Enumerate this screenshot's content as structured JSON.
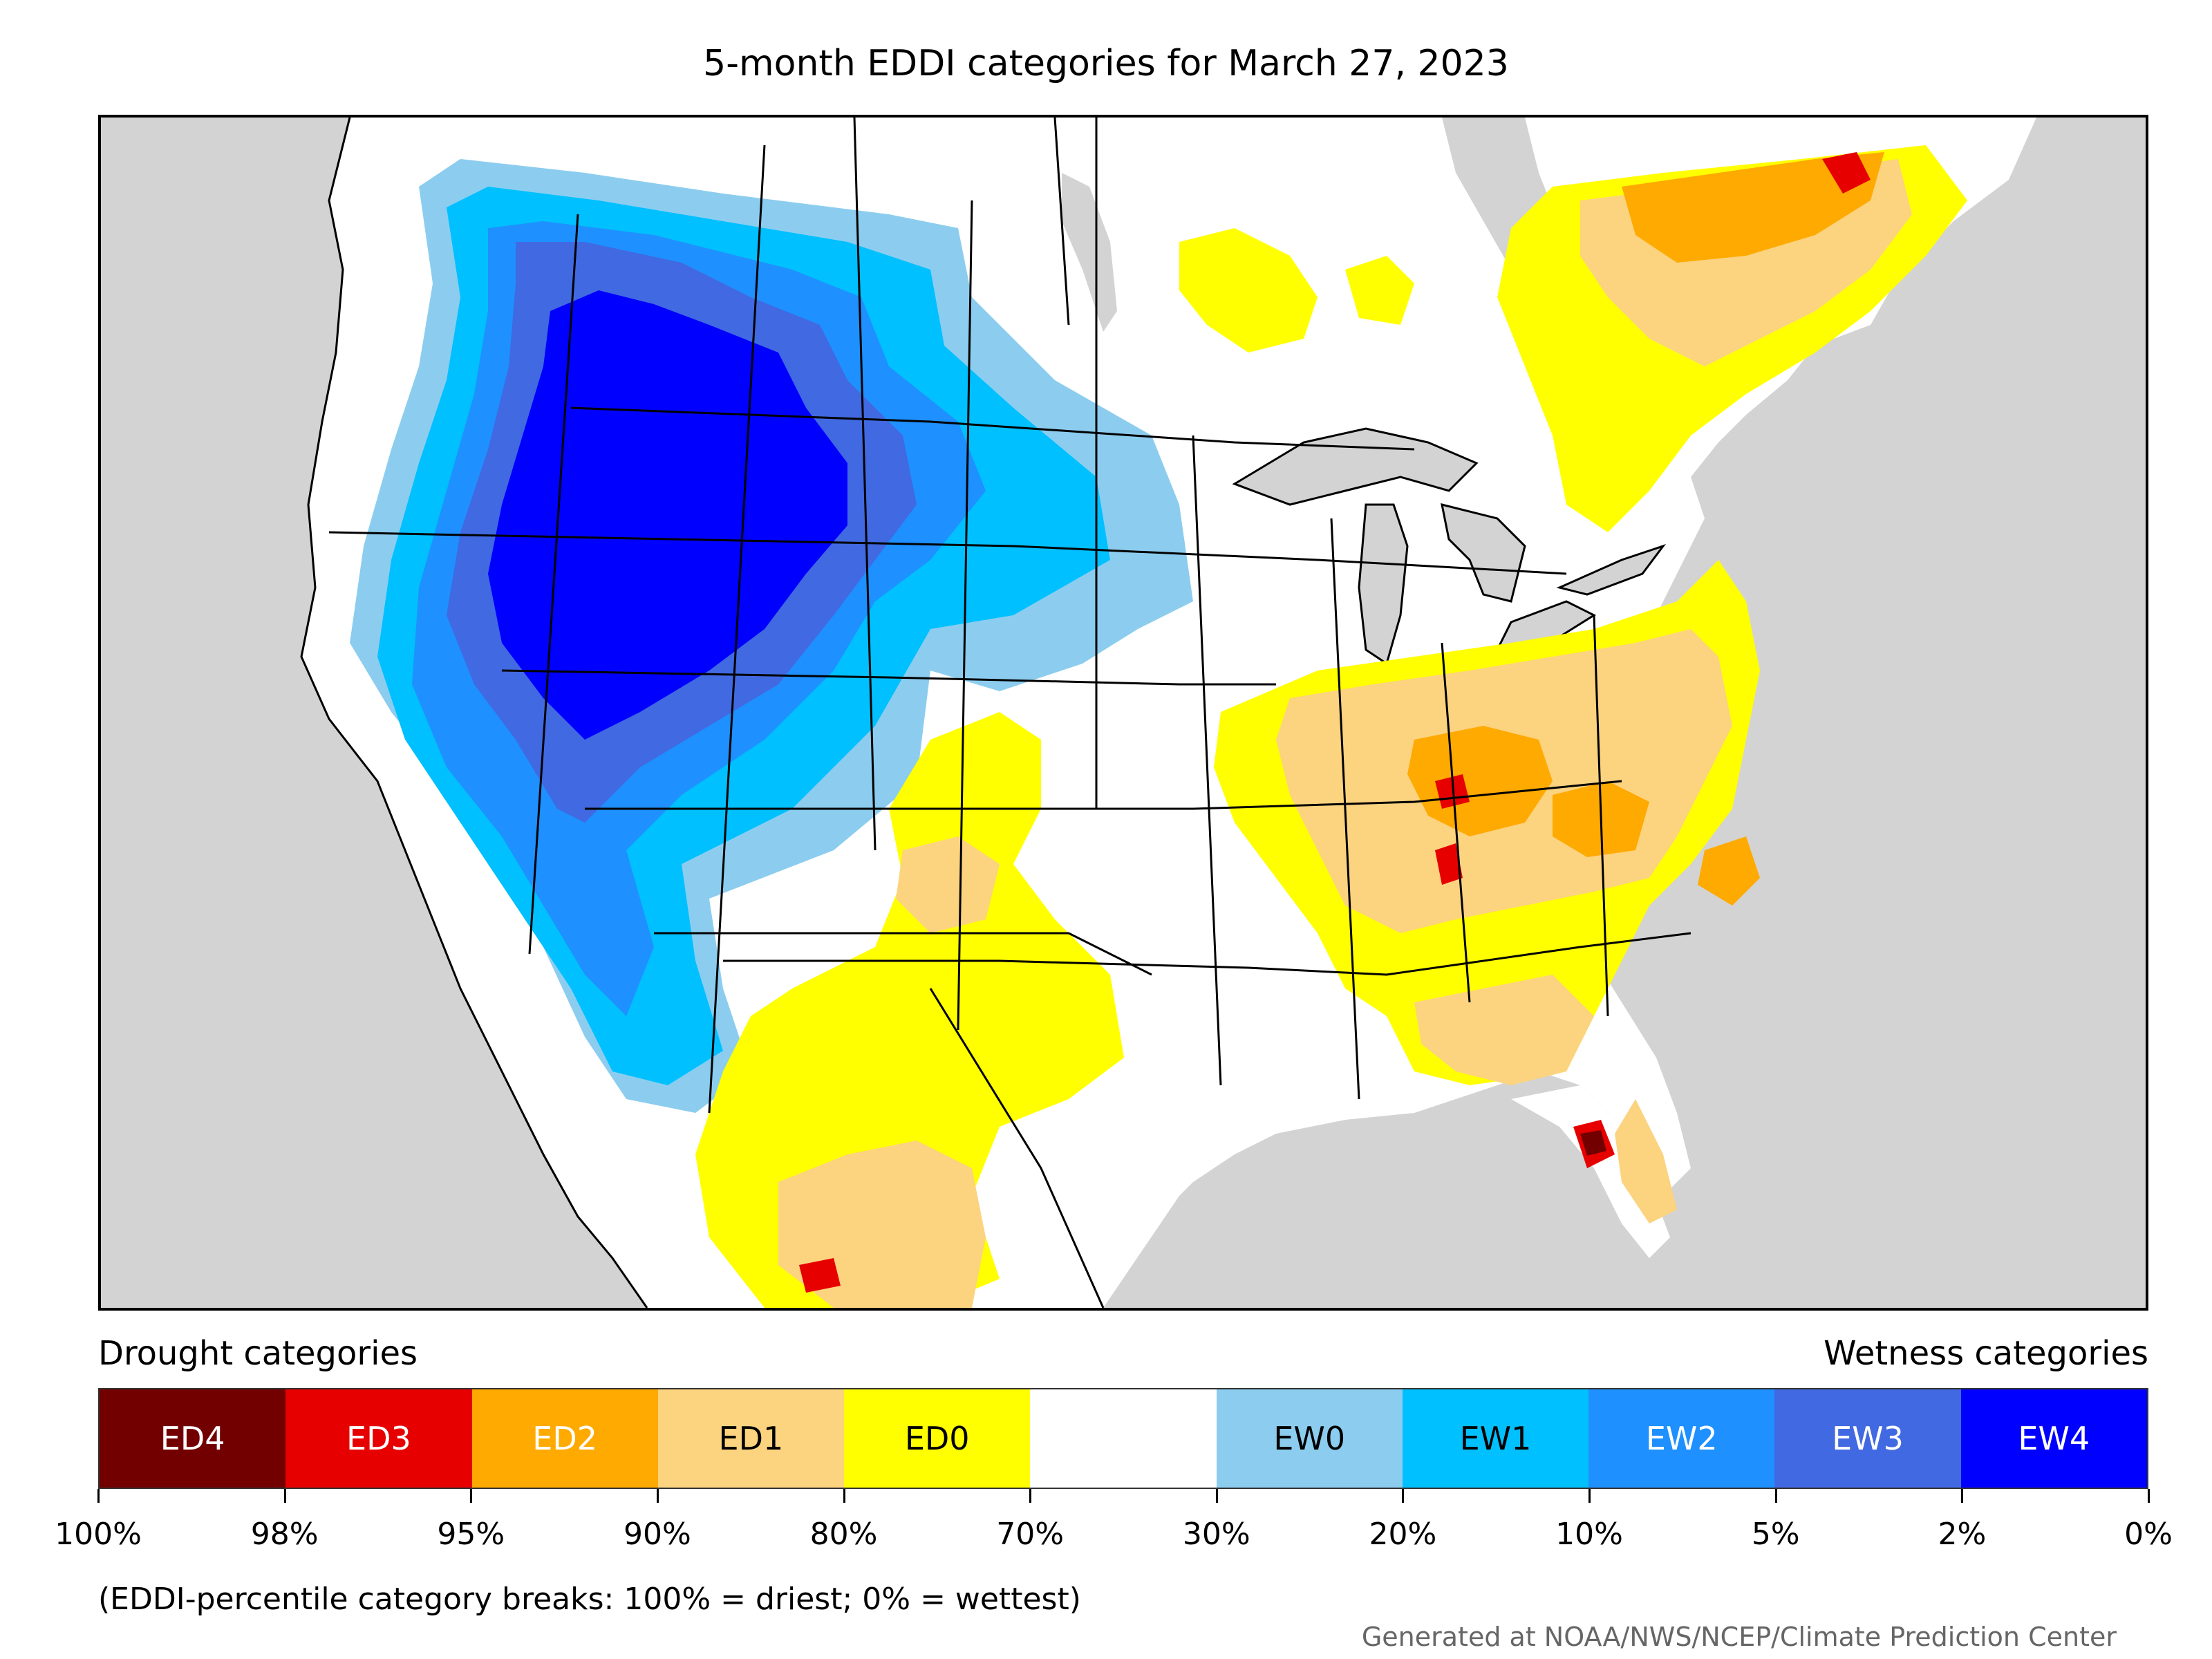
{
  "title": "5-month EDDI categories for March 27, 2023",
  "legend": {
    "drought_heading": "Drought categories",
    "wetness_heading": "Wetness categories",
    "categories": [
      {
        "label": "ED4",
        "color": "#730000",
        "text_color": "#ffffff"
      },
      {
        "label": "ED3",
        "color": "#e60000",
        "text_color": "#ffffff"
      },
      {
        "label": "ED2",
        "color": "#ffaa00",
        "text_color": "#ffffff"
      },
      {
        "label": "ED1",
        "color": "#fcd37f",
        "text_color": "#000000"
      },
      {
        "label": "ED0",
        "color": "#ffff00",
        "text_color": "#000000"
      },
      {
        "label": "",
        "color": "#ffffff",
        "text_color": "#000000"
      },
      {
        "label": "EW0",
        "color": "#8ccdef",
        "text_color": "#000000"
      },
      {
        "label": "EW1",
        "color": "#00c0ff",
        "text_color": "#000000"
      },
      {
        "label": "EW2",
        "color": "#1e90ff",
        "text_color": "#ffffff"
      },
      {
        "label": "EW3",
        "color": "#4169e1",
        "text_color": "#ffffff"
      },
      {
        "label": "EW4",
        "color": "#0000ff",
        "text_color": "#ffffff"
      }
    ],
    "tick_labels": [
      "100%",
      "98%",
      "95%",
      "90%",
      "80%",
      "70%",
      "30%",
      "20%",
      "10%",
      "5%",
      "2%",
      "0%"
    ]
  },
  "note": "(EDDI-percentile category breaks: 100% = driest; 0% = wettest)",
  "credit": "Generated at NOAA/NWS/NCEP/Climate Prediction Center",
  "map": {
    "background_color": "#d3d3d3",
    "land_color": "#ffffff",
    "water_color": "#d3d3d3"
  }
}
